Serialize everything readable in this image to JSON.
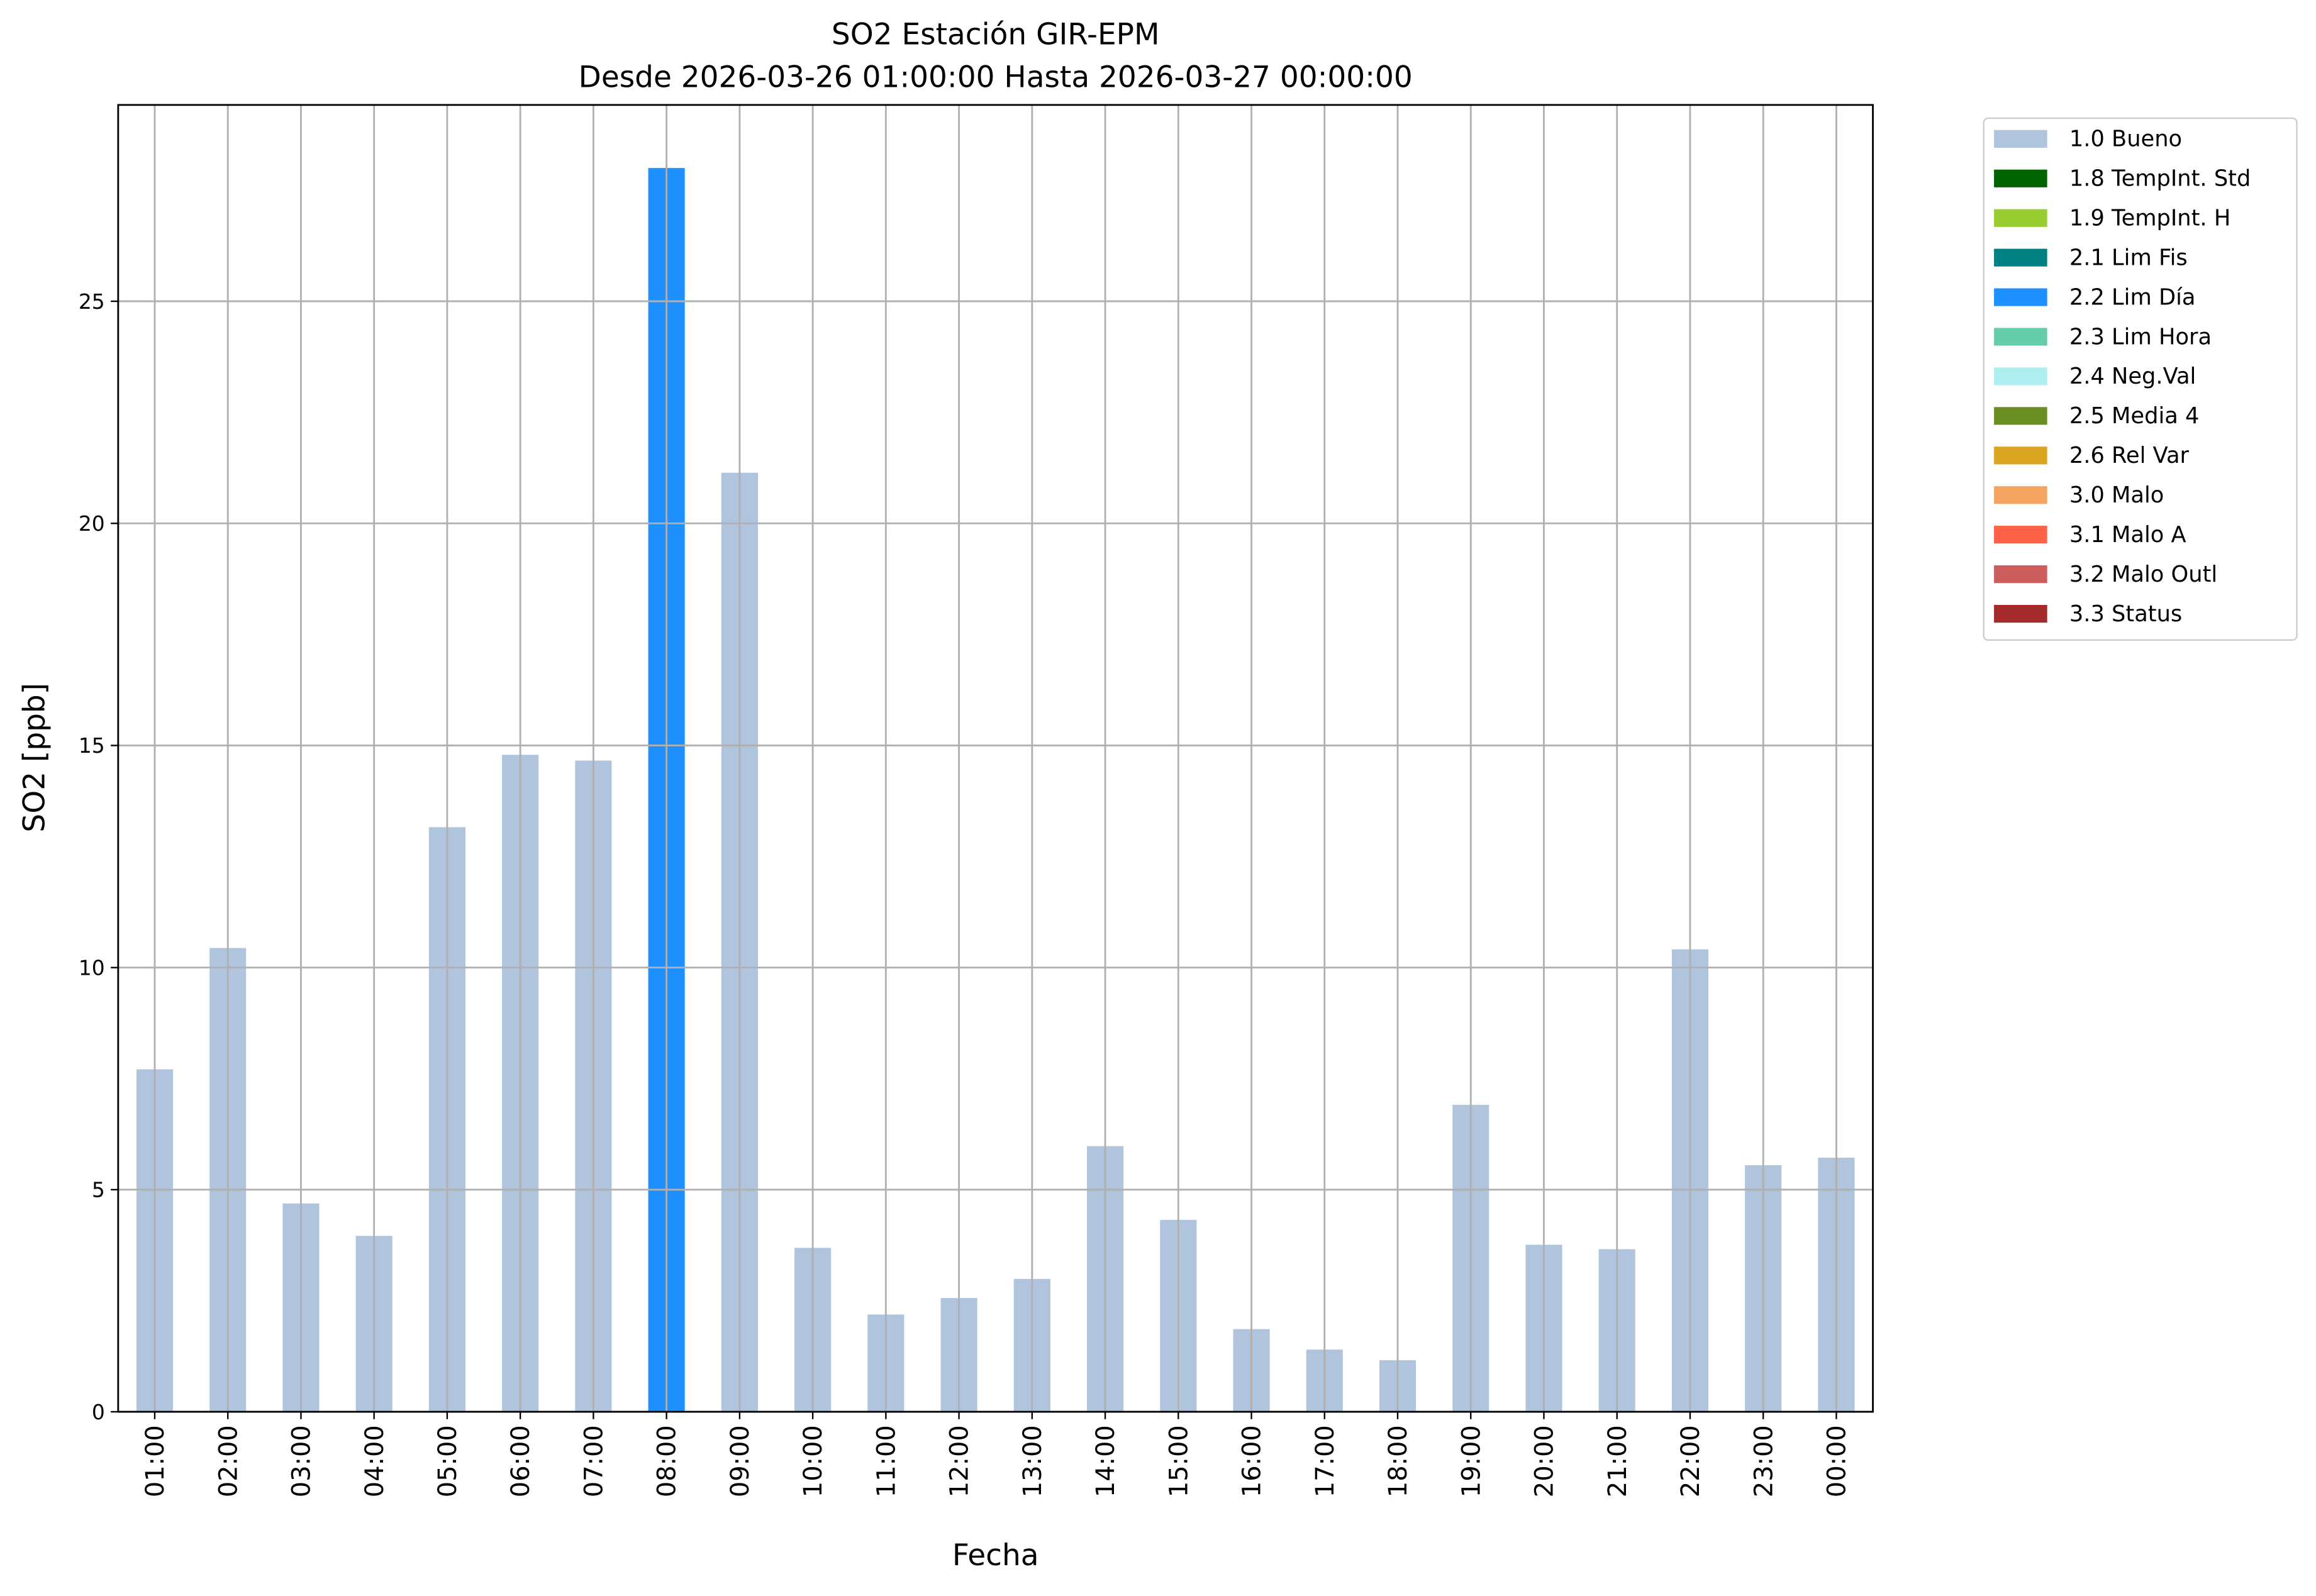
{
  "chart_data": {
    "type": "bar",
    "stacked": true,
    "title": "SO2 Estación GIR-EPM",
    "subtitle": "Desde 2026-03-26 01:00:00 Hasta 2026-03-27 00:00:00",
    "x_label": "Fecha",
    "y_label": "SO2 [ppb]",
    "categories": [
      "01:00",
      "02:00",
      "03:00",
      "04:00",
      "05:00",
      "06:00",
      "07:00",
      "08:00",
      "09:00",
      "10:00",
      "11:00",
      "12:00",
      "13:00",
      "14:00",
      "15:00",
      "16:00",
      "17:00",
      "18:00",
      "19:00",
      "20:00",
      "21:00",
      "22:00",
      "23:00",
      "00:00"
    ],
    "series": [
      {
        "name": "1.0 Bueno",
        "color": "#b0c4de",
        "values": [
          7.71,
          10.44,
          4.69,
          3.96,
          13.16,
          14.79,
          14.66,
          null,
          21.14,
          3.69,
          2.19,
          2.56,
          2.99,
          5.98,
          4.32,
          1.86,
          1.4,
          1.16,
          6.91,
          3.76,
          3.66,
          10.41,
          5.55,
          5.72
        ]
      },
      {
        "name": "1.8 TempInt. Std",
        "color": "#006400",
        "values": [
          null,
          null,
          null,
          null,
          null,
          null,
          null,
          null,
          null,
          null,
          null,
          null,
          null,
          null,
          null,
          null,
          null,
          null,
          null,
          null,
          null,
          null,
          null,
          null
        ]
      },
      {
        "name": "1.9 TempInt. H",
        "color": "#9acd32",
        "values": [
          null,
          null,
          null,
          null,
          null,
          null,
          null,
          null,
          null,
          null,
          null,
          null,
          null,
          null,
          null,
          null,
          null,
          null,
          null,
          null,
          null,
          null,
          null,
          null
        ]
      },
      {
        "name": "2.1 Lim Fis",
        "color": "#008080",
        "values": [
          null,
          null,
          null,
          null,
          null,
          null,
          null,
          null,
          null,
          null,
          null,
          null,
          null,
          null,
          null,
          null,
          null,
          null,
          null,
          null,
          null,
          null,
          null,
          null
        ]
      },
      {
        "name": "2.2 Lim Día",
        "color": "#1e90ff",
        "values": [
          null,
          null,
          null,
          null,
          null,
          null,
          null,
          28.0,
          null,
          null,
          null,
          null,
          null,
          null,
          null,
          null,
          null,
          null,
          null,
          null,
          null,
          null,
          null,
          null
        ]
      },
      {
        "name": "2.3 Lim Hora",
        "color": "#66cdaa",
        "values": [
          null,
          null,
          null,
          null,
          null,
          null,
          null,
          null,
          null,
          null,
          null,
          null,
          null,
          null,
          null,
          null,
          null,
          null,
          null,
          null,
          null,
          null,
          null,
          null
        ]
      },
      {
        "name": "2.4 Neg.Val",
        "color": "#afeeee",
        "values": [
          null,
          null,
          null,
          null,
          null,
          null,
          null,
          null,
          null,
          null,
          null,
          null,
          null,
          null,
          null,
          null,
          null,
          null,
          null,
          null,
          null,
          null,
          null,
          null
        ]
      },
      {
        "name": "2.5 Media 4",
        "color": "#6b8e23",
        "values": [
          null,
          null,
          null,
          null,
          null,
          null,
          null,
          null,
          null,
          null,
          null,
          null,
          null,
          null,
          null,
          null,
          null,
          null,
          null,
          null,
          null,
          null,
          null,
          null
        ]
      },
      {
        "name": "2.6 Rel Var",
        "color": "#daa520",
        "values": [
          null,
          null,
          null,
          null,
          null,
          null,
          null,
          null,
          null,
          null,
          null,
          null,
          null,
          null,
          null,
          null,
          null,
          null,
          null,
          null,
          null,
          null,
          null,
          null
        ]
      },
      {
        "name": "3.0 Malo",
        "color": "#f4a460",
        "values": [
          null,
          null,
          null,
          null,
          null,
          null,
          null,
          null,
          null,
          null,
          null,
          null,
          null,
          null,
          null,
          null,
          null,
          null,
          null,
          null,
          null,
          null,
          null,
          null
        ]
      },
      {
        "name": "3.1 Malo A",
        "color": "#ff6347",
        "values": [
          null,
          null,
          null,
          null,
          null,
          null,
          null,
          null,
          null,
          null,
          null,
          null,
          null,
          null,
          null,
          null,
          null,
          null,
          null,
          null,
          null,
          null,
          null,
          null
        ]
      },
      {
        "name": "3.2 Malo Outl",
        "color": "#cd5c5c",
        "values": [
          null,
          null,
          null,
          null,
          null,
          null,
          null,
          null,
          null,
          null,
          null,
          null,
          null,
          null,
          null,
          null,
          null,
          null,
          null,
          null,
          null,
          null,
          null,
          null
        ]
      },
      {
        "name": "3.3 Status",
        "color": "#a52a2a",
        "values": [
          null,
          null,
          null,
          null,
          null,
          null,
          null,
          null,
          null,
          null,
          null,
          null,
          null,
          null,
          null,
          null,
          null,
          null,
          null,
          null,
          null,
          null,
          null,
          null
        ]
      }
    ],
    "ylim": [
      0,
      29.42
    ],
    "yticks": [
      0,
      5,
      10,
      15,
      20,
      25
    ],
    "grid": true,
    "legend": "outside-right"
  }
}
